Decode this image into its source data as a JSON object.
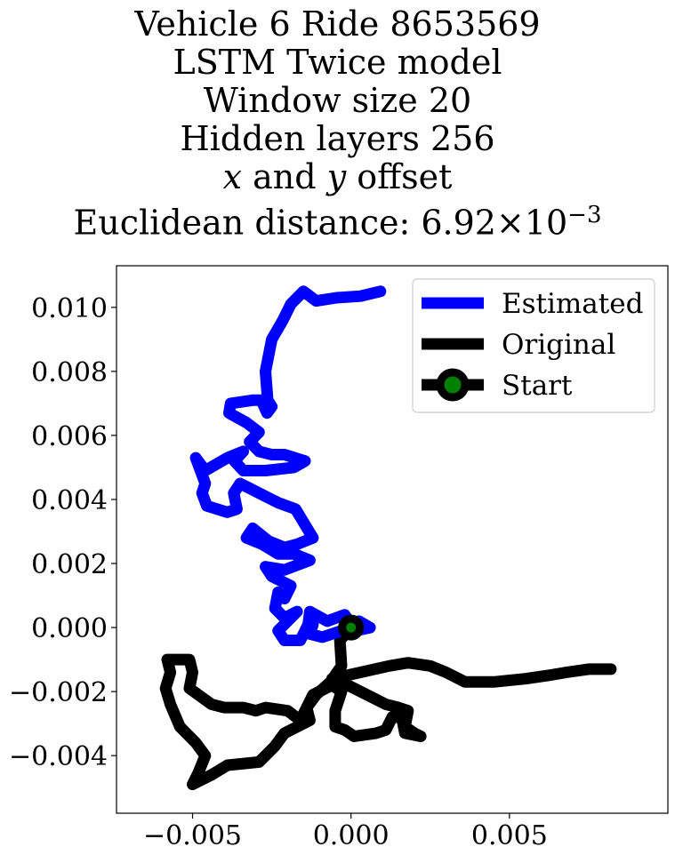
{
  "chart_data": {
    "type": "line",
    "title_lines": [
      "Vehicle 6 Ride 8653569",
      "LSTM Twice model",
      "Window size 20",
      "Hidden layers 256"
    ],
    "title_offset_line": {
      "x_var": "x",
      "and_text": " and ",
      "y_var": "y",
      "rest": " offset"
    },
    "title_distance_line": {
      "prefix": "Euclidean distance: ",
      "mantissa": "6.92",
      "times": "×",
      "base": "10",
      "exponent": "−3"
    },
    "xlim": [
      -0.0074,
      0.01
    ],
    "ylim": [
      -0.0058,
      0.0113
    ],
    "x_ticks": [
      -0.005,
      0.0,
      0.005
    ],
    "x_tick_labels": [
      "−0.005",
      "0.000",
      "0.005"
    ],
    "y_ticks": [
      0.01,
      0.008,
      0.006,
      0.004,
      0.002,
      0.0,
      -0.002,
      -0.004
    ],
    "y_tick_labels": [
      "0.010",
      "0.008",
      "0.006",
      "0.004",
      "0.002",
      "0.000",
      "−0.002",
      "−0.004"
    ],
    "grid": false,
    "legend_position": "top-right",
    "series": [
      {
        "name": "Estimated",
        "color": "#0000ff",
        "x": [
          0.00093,
          0.0003,
          -0.00045,
          -0.0011,
          -0.0015,
          -0.0019,
          -0.00215,
          -0.0025,
          -0.0027,
          -0.00263,
          -0.0025,
          -0.00265,
          -0.00283,
          -0.0031,
          -0.0038,
          -0.00385,
          -0.0033,
          -0.0029,
          -0.0032,
          -0.0029,
          -0.0025,
          -0.0021,
          -0.00145,
          -0.0018,
          -0.0027,
          -0.0034,
          -0.00368,
          -0.0034,
          -0.0039,
          -0.0046,
          -0.0049,
          -0.0046,
          -0.0047,
          -0.00455,
          -0.0039,
          -0.0036,
          -0.0037,
          -0.0035,
          -0.0033,
          -0.0027,
          -0.0023,
          -0.00175,
          -0.0012,
          -0.0017,
          -0.0021,
          -0.0026,
          -0.0031,
          -0.0033,
          -0.0028,
          -0.0023,
          -0.0018,
          -0.0013,
          -0.0021,
          -0.0027,
          -0.0025,
          -0.0019,
          -0.0021,
          -0.0023,
          -0.0024,
          -0.0021,
          -0.0017,
          -0.0023,
          -0.0021,
          -0.0016,
          -0.00135,
          -0.0013,
          -0.00075,
          -0.0002,
          0.00015,
          0.0006,
          0.00025,
          -0.0003,
          -0.0009,
          -0.0013,
          -0.0012
        ],
        "y": [
          0.0105,
          0.01035,
          0.0103,
          0.0102,
          0.0105,
          0.0101,
          0.0096,
          0.009,
          0.008,
          0.0071,
          0.0069,
          0.0067,
          0.0071,
          0.0071,
          0.007,
          0.0067,
          0.0064,
          0.0061,
          0.0058,
          0.0055,
          0.0054,
          0.0054,
          0.0052,
          0.005,
          0.0049,
          0.0049,
          0.0052,
          0.0055,
          0.0053,
          0.0049,
          0.0053,
          0.0045,
          0.0042,
          0.0038,
          0.0036,
          0.0037,
          0.0042,
          0.0045,
          0.0044,
          0.0041,
          0.0039,
          0.0037,
          0.0028,
          0.0026,
          0.0025,
          0.0027,
          0.0031,
          0.0028,
          0.0026,
          0.0023,
          0.0023,
          0.0021,
          0.0018,
          0.0019,
          0.0016,
          0.0013,
          0.0009,
          0.0011,
          0.0006,
          0.0003,
          0.0005,
          -0.0001,
          -0.0004,
          -0.0004,
          0.0001,
          0.0005,
          0.0002,
          0.0004,
          -0.0001,
          0.0,
          0.0002,
          -0.0001,
          -0.0003,
          -0.0002,
          0.0001
        ]
      },
      {
        "name": "Original",
        "color": "#000000",
        "x": [
          0.0,
          -0.00035,
          -0.0003,
          -0.00065,
          -0.0011,
          -0.0014,
          -0.0013,
          -0.0021,
          -0.0024,
          -0.0027,
          -0.0029,
          -0.0039,
          -0.0044,
          -0.0048,
          -0.005,
          -0.0048,
          -0.0046,
          -0.0049,
          -0.0054,
          -0.0057,
          -0.00585,
          -0.0057,
          -0.0058,
          -0.0051,
          -0.005,
          -0.0051,
          -0.0044,
          -0.004,
          -0.0036,
          -0.0034,
          -0.003,
          -0.0027,
          -0.002,
          -0.0016,
          -0.0014,
          -0.0012,
          -0.0006,
          -0.0003,
          -0.0005,
          -0.0005,
          -0.0002,
          0.0001,
          0.0008,
          0.0011,
          0.0013,
          0.0016,
          0.0017,
          0.0022,
          0.002,
          0.0017,
          0.0018,
          0.0015,
          0.0011,
          0.0005,
          -0.0003,
          -0.0006,
          0.0012,
          0.0018,
          0.0025,
          0.003,
          0.0036,
          0.0045,
          0.0055,
          0.0062,
          0.0068,
          0.0075,
          0.0082
        ],
        "y": [
          0.0,
          -0.0004,
          -0.0012,
          -0.0017,
          -0.0021,
          -0.0025,
          -0.0029,
          -0.0033,
          -0.0037,
          -0.004,
          -0.0042,
          -0.0043,
          -0.0046,
          -0.0048,
          -0.0049,
          -0.0045,
          -0.004,
          -0.0036,
          -0.0031,
          -0.0024,
          -0.0019,
          -0.0014,
          -0.001,
          -0.001,
          -0.0014,
          -0.0019,
          -0.0024,
          -0.0025,
          -0.0025,
          -0.0025,
          -0.0026,
          -0.0025,
          -0.0026,
          -0.0029,
          -0.0025,
          -0.0021,
          -0.0018,
          -0.002,
          -0.0026,
          -0.0031,
          -0.0032,
          -0.0034,
          -0.0033,
          -0.0032,
          -0.0028,
          -0.0028,
          -0.0033,
          -0.0034,
          -0.0033,
          -0.0031,
          -0.0026,
          -0.0025,
          -0.0024,
          -0.0021,
          -0.0017,
          -0.0016,
          -0.0012,
          -0.0011,
          -0.0012,
          -0.0014,
          -0.0017,
          -0.0017,
          -0.0016,
          -0.0015,
          -0.0014,
          -0.0013,
          -0.0013
        ]
      }
    ],
    "start_marker": {
      "name": "Start",
      "x": 0.0,
      "y": 0.0,
      "face_color": "#008000",
      "edge_color": "#000000"
    }
  }
}
